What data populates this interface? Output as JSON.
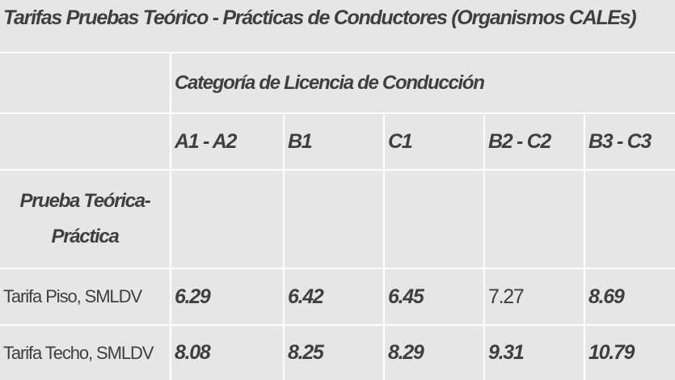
{
  "title": "Tarifas Pruebas Teórico - Prácticas de Conductores (Organismos CALEs)",
  "category_header": "Categoría de Licencia de Conducción",
  "columns": [
    "A1 - A2",
    "B1",
    "C1",
    "B2 - C2",
    "B3 - C3"
  ],
  "prueba_label": "Prueba Teórica-Práctica",
  "rows": [
    {
      "label": "Tarifa Piso, SMLDV",
      "values": [
        "6.29",
        "6.42",
        "6.45",
        "7.27",
        "8.69"
      ]
    },
    {
      "label": "Tarifa Techo, SMLDV",
      "values": [
        "8.08",
        "8.25",
        "8.29",
        "9.31",
        "10.79"
      ]
    }
  ],
  "colors": {
    "cell_background": "#e6e6e6",
    "grid_lines": "#ffffff",
    "text": "#3f3f3f"
  }
}
